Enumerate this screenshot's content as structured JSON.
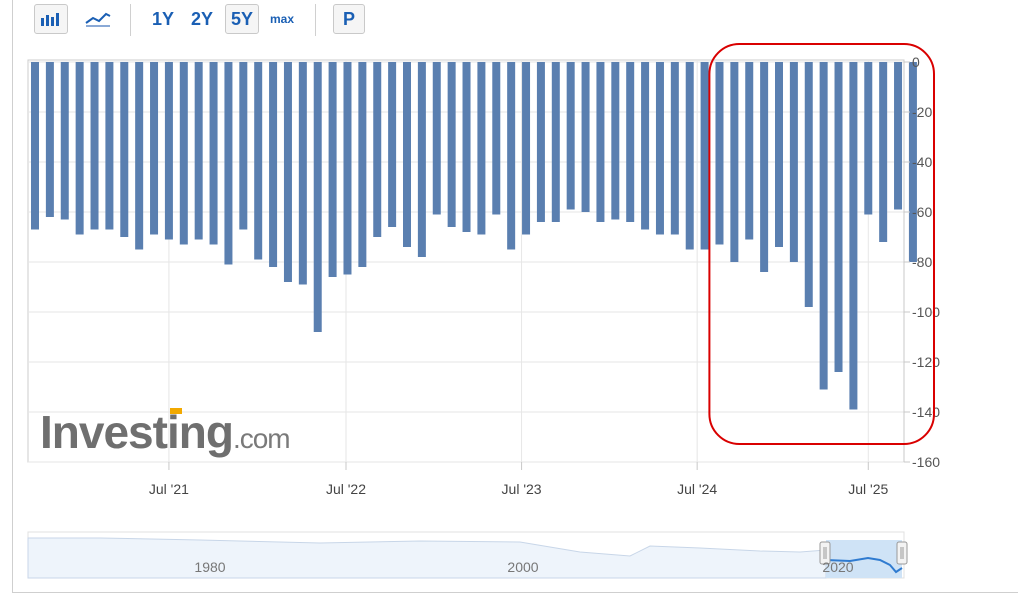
{
  "toolbar": {
    "bar_chart_icon": "bar-chart-icon",
    "line_chart_icon": "line-chart-icon",
    "periods": [
      "1Y",
      "2Y",
      "5Y",
      "max"
    ],
    "active_period": "5Y",
    "p_label": "P"
  },
  "watermark": {
    "brand": "Investing",
    "suffix": ".com"
  },
  "navigator": {
    "labels": [
      "1980",
      "2000",
      "2020"
    ]
  },
  "colors": {
    "bar": "#5a7fb0",
    "highlight": "#d90000",
    "grid": "#e6e6e6",
    "navigator_fill": "#cfe3f6"
  },
  "chart_data": {
    "type": "bar",
    "orientation": "downward from 0",
    "x_ticks": [
      "Jul '21",
      "Jul '22",
      "Jul '23",
      "Jul '24",
      "Jul '25"
    ],
    "ylim": [
      -160,
      0
    ],
    "y_ticks": [
      "0",
      "-20",
      "-40",
      "-60",
      "-80",
      "-100",
      "-120",
      "-140",
      "-160"
    ],
    "grid": true,
    "series": [
      {
        "values": [
          -67,
          -62,
          -63,
          -69,
          -67,
          -67,
          -70,
          -75,
          -69,
          -71,
          -73,
          -71,
          -73,
          -81,
          -67,
          -79,
          -82,
          -88,
          -89,
          -108,
          -86,
          -85,
          -82,
          -70,
          -66,
          -74,
          -78,
          -61,
          -66,
          -68,
          -69,
          -61,
          -75,
          -69,
          -64,
          -64,
          -59,
          -60,
          -64,
          -63,
          -64,
          -67,
          -69,
          -69,
          -75,
          -75,
          -73,
          -80,
          -71,
          -84,
          -74,
          -80,
          -98,
          -131,
          -124,
          -139,
          -61,
          -72,
          -59,
          -80
        ]
      }
    ],
    "annotation": {
      "type": "rounded-rectangle",
      "color": "#d90000",
      "from_index": 47,
      "to_index": 59
    }
  }
}
